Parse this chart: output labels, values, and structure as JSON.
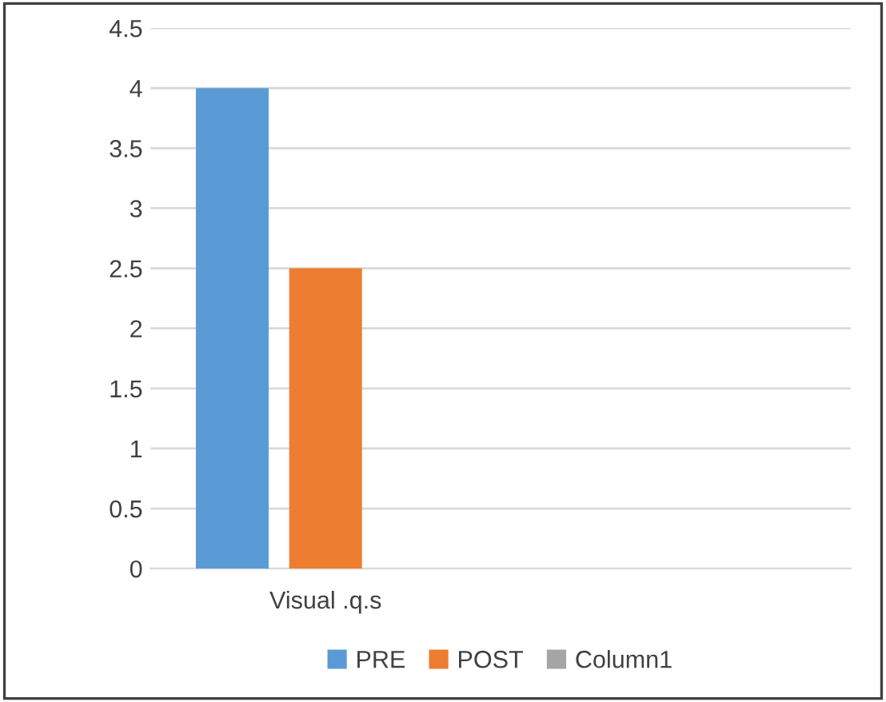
{
  "chart_data": {
    "type": "bar",
    "categories": [
      "Visual .q.s",
      null
    ],
    "series": [
      {
        "name": "PRE",
        "color": "#5b9bd5",
        "values": [
          4,
          null
        ]
      },
      {
        "name": "POST",
        "color": "#ed7d31",
        "values": [
          2.5,
          null
        ]
      },
      {
        "name": "Column1",
        "color": "#a5a5a5",
        "values": [
          0,
          null
        ]
      }
    ],
    "ylim": [
      0,
      4.5
    ],
    "yticks": [
      0,
      0.5,
      1,
      1.5,
      2,
      2.5,
      3,
      3.5,
      4,
      4.5
    ],
    "grid": "y",
    "legend": "bottom"
  }
}
